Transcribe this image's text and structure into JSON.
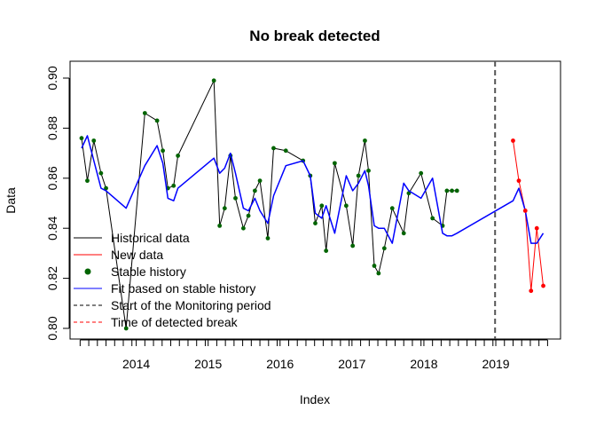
{
  "chart_data": {
    "type": "line",
    "title": "No break detected",
    "xlabel": "Index",
    "ylabel": "Data",
    "xlim": [
      2013.08,
      2019.9
    ],
    "ylim": [
      0.8,
      0.9
    ],
    "xticks": [
      {
        "value": 2014,
        "label": "2014"
      },
      {
        "value": 2015,
        "label": "2015"
      },
      {
        "value": 2016,
        "label": "2016"
      },
      {
        "value": 2017,
        "label": "2017"
      },
      {
        "value": 2018,
        "label": "2018"
      },
      {
        "value": 2019,
        "label": "2019"
      }
    ],
    "minor_xticks": [
      2013.22,
      2013.34,
      2013.46,
      2013.58,
      2013.7,
      2013.82,
      2013.94,
      2014.12,
      2014.24,
      2014.36,
      2014.48,
      2014.6,
      2014.72,
      2014.84,
      2014.96,
      2015.12,
      2015.24,
      2015.36,
      2015.48,
      2015.6,
      2015.72,
      2015.84,
      2015.96,
      2016.12,
      2016.24,
      2016.36,
      2016.48,
      2016.6,
      2016.72,
      2016.84,
      2016.96,
      2017.12,
      2017.24,
      2017.36,
      2017.48,
      2017.6,
      2017.72,
      2017.84,
      2017.96,
      2018.12,
      2018.24,
      2018.36,
      2018.48,
      2018.6,
      2018.72,
      2018.84,
      2018.96,
      2019.12,
      2019.24,
      2019.36,
      2019.48,
      2019.6,
      2019.72
    ],
    "yticks": [
      {
        "value": 0.8,
        "label": "0.80"
      },
      {
        "value": 0.82,
        "label": "0.82"
      },
      {
        "value": 0.84,
        "label": "0.84"
      },
      {
        "value": 0.86,
        "label": "0.86"
      },
      {
        "value": 0.88,
        "label": "0.88"
      },
      {
        "value": 0.9,
        "label": "0.90"
      }
    ],
    "series": [
      {
        "name": "Historical data",
        "color": "#000000",
        "kind": "line",
        "x": [
          2013.24,
          2013.32,
          2013.41,
          2013.51,
          2013.58,
          2013.86,
          2014.12,
          2014.29,
          2014.37,
          2014.44,
          2014.52,
          2014.58,
          2015.08,
          2015.16,
          2015.23,
          2015.31,
          2015.38,
          2015.49,
          2015.56,
          2015.65,
          2015.72,
          2015.83,
          2015.91,
          2016.08,
          2016.32,
          2016.42,
          2016.49,
          2016.58,
          2016.64,
          2016.76,
          2016.92,
          2017.01,
          2017.09,
          2017.18,
          2017.23,
          2017.31,
          2017.37,
          2017.45,
          2017.56,
          2017.72,
          2017.79,
          2017.96,
          2018.12,
          2018.26,
          2018.32,
          2018.39,
          2018.46
        ],
        "y": [
          0.876,
          0.859,
          0.875,
          0.862,
          0.856,
          0.8,
          0.886,
          0.883,
          0.871,
          0.856,
          0.857,
          0.869,
          0.899,
          0.841,
          0.848,
          0.869,
          0.852,
          0.84,
          0.845,
          0.855,
          0.859,
          0.836,
          0.872,
          0.871,
          0.867,
          0.861,
          0.842,
          0.849,
          0.831,
          0.866,
          0.849,
          0.833,
          0.861,
          0.875,
          0.863,
          0.825,
          0.822,
          0.832,
          0.848,
          0.838,
          0.854,
          0.862,
          0.844,
          0.841,
          0.855,
          0.855,
          0.855
        ]
      },
      {
        "name": "New data",
        "color": "#ff0000",
        "kind": "line",
        "x": [
          2019.24,
          2019.32,
          2019.41,
          2019.49,
          2019.57,
          2019.66
        ],
        "y": [
          0.875,
          0.859,
          0.847,
          0.815,
          0.84,
          0.817
        ]
      },
      {
        "name": "Stable history",
        "color": "#006400",
        "kind": "points",
        "x": [
          2013.24,
          2013.32,
          2013.41,
          2013.51,
          2013.58,
          2013.86,
          2014.12,
          2014.29,
          2014.37,
          2014.44,
          2014.52,
          2014.58,
          2015.08,
          2015.16,
          2015.23,
          2015.31,
          2015.38,
          2015.49,
          2015.56,
          2015.65,
          2015.72,
          2015.83,
          2015.91,
          2016.08,
          2016.32,
          2016.42,
          2016.49,
          2016.58,
          2016.64,
          2016.76,
          2016.92,
          2017.01,
          2017.09,
          2017.18,
          2017.23,
          2017.31,
          2017.37,
          2017.45,
          2017.56,
          2017.72,
          2017.79,
          2017.96,
          2018.12,
          2018.26,
          2018.32,
          2018.39,
          2018.46
        ],
        "y": [
          0.876,
          0.859,
          0.875,
          0.862,
          0.856,
          0.8,
          0.886,
          0.883,
          0.871,
          0.856,
          0.857,
          0.869,
          0.899,
          0.841,
          0.848,
          0.869,
          0.852,
          0.84,
          0.845,
          0.855,
          0.859,
          0.836,
          0.872,
          0.871,
          0.867,
          0.861,
          0.842,
          0.849,
          0.831,
          0.866,
          0.849,
          0.833,
          0.861,
          0.875,
          0.863,
          0.825,
          0.822,
          0.832,
          0.848,
          0.838,
          0.854,
          0.862,
          0.844,
          0.841,
          0.855,
          0.855,
          0.855
        ]
      },
      {
        "name": "Fit based on stable history",
        "color": "#0000ff",
        "kind": "line",
        "x": [
          2013.24,
          2013.32,
          2013.41,
          2013.51,
          2013.58,
          2013.86,
          2014.12,
          2014.29,
          2014.37,
          2014.44,
          2014.52,
          2014.58,
          2015.08,
          2015.16,
          2015.23,
          2015.31,
          2015.38,
          2015.49,
          2015.56,
          2015.65,
          2015.72,
          2015.83,
          2015.91,
          2016.08,
          2016.32,
          2016.42,
          2016.49,
          2016.58,
          2016.64,
          2016.76,
          2016.92,
          2017.01,
          2017.09,
          2017.18,
          2017.23,
          2017.31,
          2017.37,
          2017.45,
          2017.56,
          2017.72,
          2017.79,
          2017.96,
          2018.12,
          2018.26,
          2018.32,
          2018.39,
          2018.46,
          2019.24,
          2019.32,
          2019.41,
          2019.49,
          2019.57,
          2019.66
        ],
        "y": [
          0.872,
          0.877,
          0.867,
          0.856,
          0.855,
          0.848,
          0.865,
          0.873,
          0.866,
          0.852,
          0.851,
          0.856,
          0.868,
          0.862,
          0.864,
          0.87,
          0.862,
          0.848,
          0.847,
          0.852,
          0.847,
          0.842,
          0.853,
          0.865,
          0.867,
          0.861,
          0.846,
          0.844,
          0.849,
          0.838,
          0.861,
          0.855,
          0.858,
          0.863,
          0.857,
          0.841,
          0.84,
          0.84,
          0.834,
          0.858,
          0.855,
          0.852,
          0.86,
          0.838,
          0.837,
          0.837,
          0.838,
          0.851,
          0.856,
          0.847,
          0.834,
          0.834,
          0.838
        ]
      }
    ],
    "monitoring_start": 2018.99,
    "legend": {
      "position": "bottom-left",
      "entries": [
        {
          "label": "Historical data",
          "color": "#000000",
          "style": "solid-line"
        },
        {
          "label": "New data",
          "color": "#ff0000",
          "style": "solid-line"
        },
        {
          "label": "Stable history",
          "color": "#006400",
          "style": "point"
        },
        {
          "label": "Fit based on stable history",
          "color": "#0000ff",
          "style": "solid-line"
        },
        {
          "label": "Start of the Monitoring period",
          "color": "#000000",
          "style": "dashed-line"
        },
        {
          "label": "Time of detected break",
          "color": "#ff0000",
          "style": "dashed-line"
        }
      ]
    },
    "grid": false
  }
}
